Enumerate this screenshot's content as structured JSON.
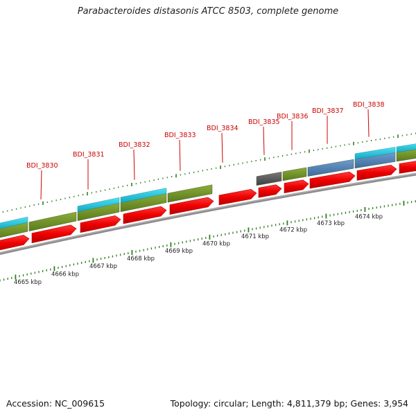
{
  "title": "Parabacteroides distasonis ATCC 8503, complete genome",
  "footer": {
    "accession": "Accession: NC_009615",
    "stats": "Topology: circular; Length: 4,811,379 bp; Genes: 3,954"
  },
  "kbp_labels": [
    "4665 kbp",
    "4666 kbp",
    "4667 kbp",
    "4668 kbp",
    "4669 kbp",
    "4670 kbp",
    "4671 kbp",
    "4672 kbp",
    "4673 kbp",
    "4674 kbp"
  ],
  "gene_labels": [
    "BDI_3830",
    "BDI_3831",
    "BDI_3832",
    "BDI_3833",
    "BDI_3834",
    "BDI_3835",
    "BDI_3836",
    "BDI_3837",
    "BDI_3838"
  ],
  "colors": {
    "cds": "#ee0000",
    "cds_edge": "#b40000",
    "label": "#cc0000",
    "tick": "#2f7d1e",
    "backbone": "#8c8c8c",
    "feature_green": "#6b8e23",
    "feature_cyan": "#19c2dc",
    "feature_blue": "#4a7db0",
    "feature_gray": "#5a5a5a"
  }
}
